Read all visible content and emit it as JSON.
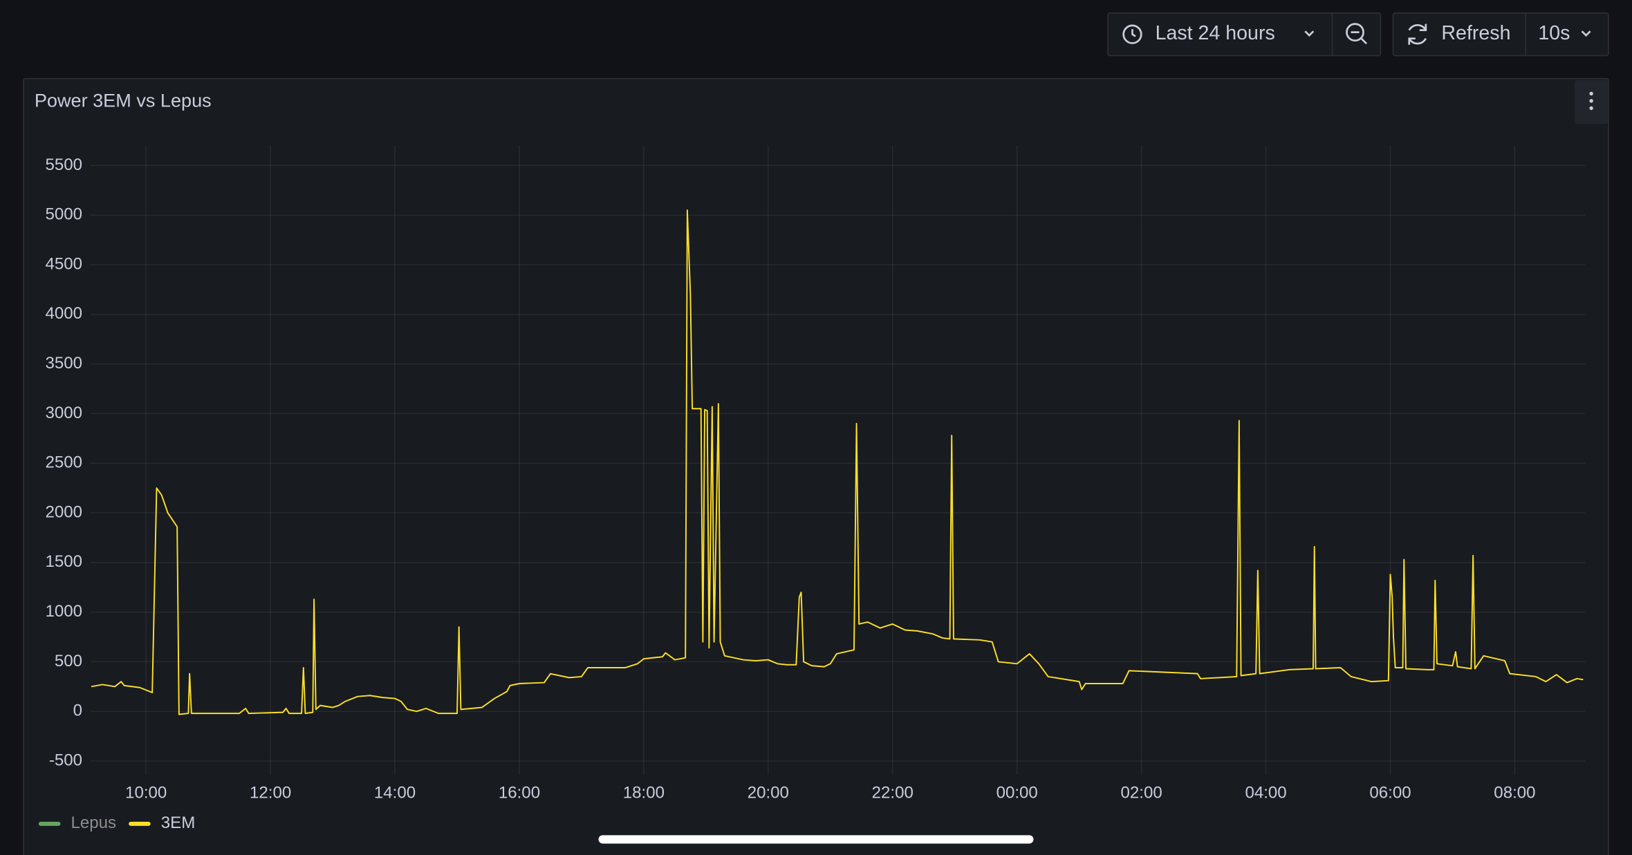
{
  "toolbar": {
    "time_range": "Last 24 hours",
    "refresh": "Refresh",
    "interval": "10s"
  },
  "chart_data": {
    "type": "line",
    "title": "Power 3EM vs Lepus",
    "x": [
      9.12,
      9.3,
      9.5,
      9.6,
      9.65,
      9.9,
      10.1,
      10.17,
      10.25,
      10.35,
      10.5,
      10.53,
      10.68,
      10.7,
      10.73,
      11.5,
      11.6,
      11.65,
      12.2,
      12.25,
      12.3,
      12.5,
      12.53,
      12.56,
      12.68,
      12.7,
      12.73,
      12.8,
      13.0,
      13.1,
      13.2,
      13.4,
      13.6,
      13.8,
      14.0,
      14.1,
      14.2,
      14.35,
      14.5,
      14.7,
      15.0,
      15.03,
      15.06,
      15.4,
      15.6,
      15.8,
      15.85,
      16.0,
      16.4,
      16.5,
      16.8,
      17.0,
      17.1,
      17.7,
      17.9,
      18.0,
      18.3,
      18.35,
      18.5,
      18.67,
      18.7,
      18.75,
      18.78,
      18.92,
      18.95,
      18.98,
      19.02,
      19.05,
      19.1,
      19.13,
      19.2,
      19.23,
      19.3,
      19.6,
      19.8,
      20.0,
      20.15,
      20.3,
      20.45,
      20.5,
      20.53,
      20.57,
      20.7,
      20.9,
      21.0,
      21.1,
      21.38,
      21.42,
      21.46,
      21.6,
      21.8,
      22.0,
      22.2,
      22.4,
      22.65,
      22.8,
      22.92,
      22.95,
      22.98,
      23.4,
      23.6,
      23.7,
      24.0,
      24.2,
      24.35,
      24.5,
      25.0,
      25.04,
      25.1,
      25.7,
      25.8,
      26.9,
      26.95,
      27.53,
      27.57,
      27.6,
      27.84,
      27.87,
      27.9,
      28.37,
      28.76,
      28.78,
      28.8,
      29.2,
      29.37,
      29.7,
      29.97,
      30.0,
      30.03,
      30.05,
      30.08,
      30.2,
      30.22,
      30.25,
      30.6,
      30.7,
      30.72,
      30.75,
      31.0,
      31.05,
      31.08,
      31.3,
      31.33,
      31.36,
      31.5,
      31.84,
      31.92,
      32.34,
      32.5,
      32.67,
      32.84,
      33.0,
      33.1
    ],
    "series": [
      {
        "name": "Lepus",
        "color": "#73bf69",
        "hidden": true,
        "values": [
          null,
          null,
          null,
          null,
          null,
          null,
          null,
          null,
          null,
          null,
          null,
          null,
          null,
          null,
          null,
          null,
          null,
          null,
          null,
          null,
          null,
          null,
          null,
          null,
          null,
          null,
          null,
          null,
          null,
          null,
          null,
          null,
          null,
          null,
          null,
          null,
          null,
          null,
          null,
          null,
          null,
          null,
          null,
          null,
          null,
          null,
          null,
          null,
          null,
          null,
          null,
          null,
          null,
          null,
          null,
          null,
          null,
          null,
          null,
          null,
          null,
          null,
          null,
          null,
          null,
          null,
          null,
          null,
          null,
          null,
          null,
          null,
          null,
          null,
          null,
          null,
          null,
          null,
          null,
          null,
          null,
          null,
          null,
          null,
          null,
          null,
          null,
          null,
          null,
          null,
          null,
          null,
          null,
          null,
          null,
          null,
          null,
          null,
          null,
          null,
          null,
          null,
          null,
          null,
          null,
          null,
          null,
          null,
          null,
          null,
          null,
          null,
          null,
          null,
          null,
          null,
          null,
          null,
          null,
          null,
          null,
          null,
          null,
          null,
          null,
          null,
          null,
          null,
          null,
          null,
          null,
          null,
          null,
          null,
          null,
          null,
          null,
          null,
          null,
          null,
          null,
          null,
          null,
          null,
          null,
          null,
          null,
          null,
          null,
          null,
          null,
          null,
          null
        ]
      },
      {
        "name": "3EM",
        "color": "#fade2a",
        "hidden": false,
        "values": [
          250,
          270,
          250,
          300,
          260,
          240,
          190,
          2250,
          2180,
          2000,
          1860,
          -30,
          -20,
          380,
          -20,
          -20,
          30,
          -20,
          -10,
          30,
          -20,
          -20,
          440,
          -20,
          -10,
          1130,
          20,
          60,
          40,
          60,
          100,
          150,
          160,
          140,
          130,
          100,
          20,
          0,
          30,
          -20,
          -20,
          850,
          20,
          40,
          130,
          200,
          260,
          280,
          290,
          380,
          340,
          350,
          440,
          440,
          480,
          530,
          550,
          590,
          520,
          540,
          5050,
          4200,
          3050,
          3050,
          700,
          3040,
          3030,
          640,
          3070,
          700,
          3100,
          700,
          560,
          520,
          510,
          520,
          480,
          470,
          470,
          1150,
          1200,
          500,
          460,
          450,
          480,
          580,
          620,
          2900,
          880,
          900,
          840,
          880,
          820,
          810,
          780,
          740,
          730,
          2780,
          730,
          720,
          700,
          500,
          480,
          580,
          480,
          350,
          300,
          220,
          280,
          280,
          410,
          380,
          330,
          350,
          2930,
          360,
          380,
          1420,
          380,
          420,
          430,
          1660,
          430,
          440,
          350,
          300,
          310,
          1380,
          1150,
          750,
          440,
          440,
          1530,
          430,
          420,
          420,
          1320,
          480,
          460,
          600,
          450,
          430,
          1570,
          430,
          560,
          510,
          380,
          350,
          300,
          370,
          290,
          330,
          320
        ]
      }
    ],
    "xlim": [
      9.11,
      33.13
    ],
    "xticks": [
      {
        "value": 10,
        "label": "10:00"
      },
      {
        "value": 12,
        "label": "12:00"
      },
      {
        "value": 14,
        "label": "14:00"
      },
      {
        "value": 16,
        "label": "16:00"
      },
      {
        "value": 18,
        "label": "18:00"
      },
      {
        "value": 20,
        "label": "20:00"
      },
      {
        "value": 22,
        "label": "22:00"
      },
      {
        "value": 24,
        "label": "00:00"
      },
      {
        "value": 26,
        "label": "02:00"
      },
      {
        "value": 28,
        "label": "04:00"
      },
      {
        "value": 30,
        "label": "06:00"
      },
      {
        "value": 32,
        "label": "08:00"
      }
    ],
    "ylim": [
      -640,
      5700
    ],
    "yticks": [
      -500,
      0,
      500,
      1000,
      1500,
      2000,
      2500,
      3000,
      3500,
      4000,
      4500,
      5000,
      5500
    ],
    "grid": true,
    "legend": "bottom-left"
  }
}
